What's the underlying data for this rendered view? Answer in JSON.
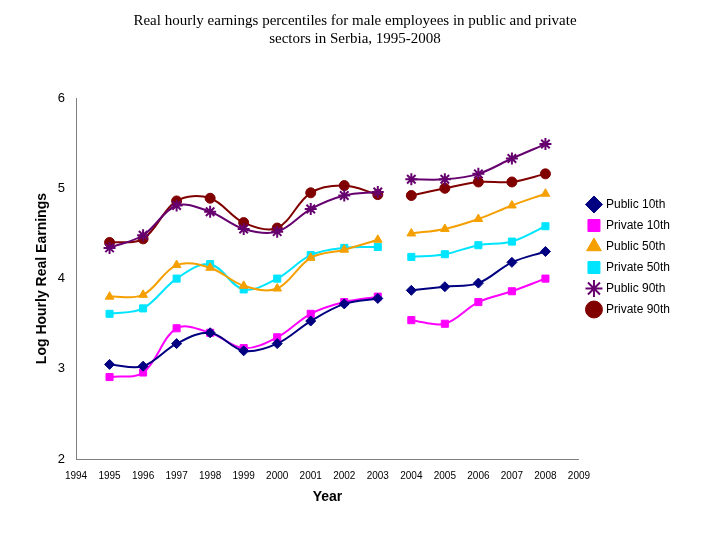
{
  "chart_data": {
    "type": "line",
    "title": [
      "Real hourly earnings percentiles for male employees in public and private",
      "sectors in Serbia, 1995-2008"
    ],
    "x_label": "Year",
    "y_label": "Log Hourly Real Earnings",
    "x": [
      1995,
      1996,
      1997,
      1998,
      1999,
      2000,
      2001,
      2002,
      2003,
      null,
      2004,
      2005,
      2006,
      2007,
      2008
    ],
    "series": [
      {
        "name": "Public 10th",
        "color": "#000080",
        "marker": "diamond",
        "values": [
          3.05,
          3.03,
          3.28,
          3.4,
          3.2,
          3.28,
          3.53,
          3.72,
          3.78,
          null,
          3.87,
          3.91,
          3.95,
          4.18,
          4.3
        ]
      },
      {
        "name": "Private 10th",
        "color": "#ff00ff",
        "marker": "square",
        "values": [
          2.91,
          2.96,
          3.45,
          3.4,
          3.23,
          3.35,
          3.61,
          3.74,
          3.8,
          null,
          3.54,
          3.5,
          3.74,
          3.86,
          4.0
        ]
      },
      {
        "name": "Public 50th",
        "color": "#f5a000",
        "marker": "triangle",
        "values": [
          3.8,
          3.82,
          4.15,
          4.12,
          3.92,
          3.89,
          4.23,
          4.32,
          4.43,
          null,
          4.5,
          4.55,
          4.66,
          4.81,
          4.94
        ]
      },
      {
        "name": "Private 50th",
        "color": "#00e5ff",
        "marker": "square",
        "values": [
          3.61,
          3.67,
          4.0,
          4.16,
          3.88,
          4.0,
          4.26,
          4.34,
          4.35,
          null,
          4.24,
          4.27,
          4.37,
          4.41,
          4.58
        ]
      },
      {
        "name": "Public 90th",
        "color": "#66006e",
        "marker": "star",
        "values": [
          4.34,
          4.48,
          4.81,
          4.74,
          4.55,
          4.52,
          4.77,
          4.92,
          4.96,
          null,
          5.1,
          5.1,
          5.16,
          5.33,
          5.49
        ]
      },
      {
        "name": "Private 90th",
        "color": "#800000",
        "marker": "circle",
        "values": [
          4.4,
          4.44,
          4.86,
          4.89,
          4.62,
          4.56,
          4.95,
          5.03,
          4.93,
          null,
          4.92,
          5.0,
          5.07,
          5.07,
          5.16
        ]
      }
    ],
    "xlim": [
      1994,
      2009
    ],
    "xticks": [
      1994,
      1995,
      1996,
      1997,
      1998,
      1999,
      2000,
      2001,
      2002,
      2003,
      2004,
      2005,
      2006,
      2007,
      2008,
      2009
    ],
    "ylim": [
      2,
      6
    ],
    "yticks": [
      2,
      3,
      4,
      5,
      6
    ],
    "grid": false,
    "legend": "right"
  }
}
